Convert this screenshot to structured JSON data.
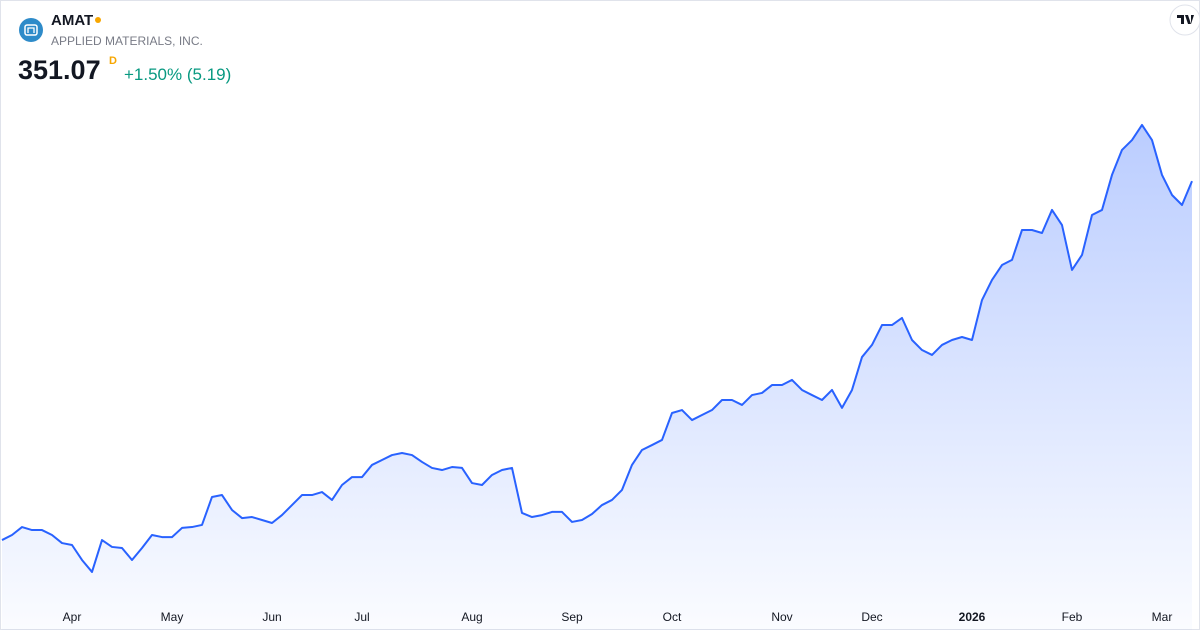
{
  "header": {
    "symbol": "AMAT",
    "company": "APPLIED MATERIALS, INC.",
    "price": "351.07",
    "interval": "D",
    "change": "+1.50% (5.19)"
  },
  "chart_data": {
    "type": "line",
    "color": "#2962ff",
    "ylim": [
      96,
      454
    ],
    "categories": [
      null,
      null,
      null,
      null,
      null,
      null,
      null,
      "Apr",
      null,
      null,
      null,
      null,
      null,
      null,
      null,
      null,
      null,
      "May",
      null,
      null,
      null,
      null,
      null,
      null,
      null,
      null,
      null,
      "Jun",
      null,
      null,
      null,
      null,
      null,
      null,
      null,
      null,
      "Jul",
      null,
      null,
      null,
      null,
      null,
      null,
      null,
      null,
      null,
      null,
      "Aug",
      null,
      null,
      null,
      null,
      null,
      null,
      null,
      null,
      null,
      "Sep",
      null,
      null,
      null,
      null,
      null,
      null,
      null,
      null,
      null,
      "Oct",
      null,
      null,
      null,
      null,
      null,
      null,
      null,
      null,
      null,
      null,
      "Nov",
      null,
      null,
      null,
      null,
      null,
      null,
      null,
      null,
      "Dec",
      null,
      null,
      null,
      null,
      null,
      null,
      null,
      null,
      null,
      "2026",
      null,
      null,
      null,
      null,
      null,
      null,
      null,
      null,
      null,
      "Feb",
      null,
      null,
      null,
      null,
      null,
      null,
      null,
      null,
      "Mar",
      null,
      null,
      null
    ],
    "values": [
      147.1,
      150.0,
      154.5,
      152.8,
      152.8,
      150.0,
      145.4,
      144.3,
      135.8,
      129.0,
      147.1,
      143.2,
      142.6,
      135.8,
      142.6,
      150.0,
      148.8,
      148.8,
      154.0,
      154.5,
      155.7,
      171.6,
      172.7,
      164.2,
      159.6,
      160.2,
      158.5,
      156.8,
      161.3,
      167.0,
      172.7,
      172.7,
      174.4,
      169.9,
      178.4,
      182.9,
      182.9,
      189.8,
      192.6,
      195.4,
      196.6,
      195.4,
      191.5,
      188.1,
      186.9,
      188.6,
      188.1,
      179.5,
      178.4,
      184.1,
      186.9,
      188.1,
      162.5,
      160.2,
      161.3,
      163.1,
      163.1,
      157.4,
      158.5,
      161.9,
      167.0,
      169.9,
      175.6,
      189.8,
      198.3,
      201.1,
      204.0,
      219.3,
      221.0,
      215.3,
      218.2,
      221.0,
      226.7,
      226.7,
      223.9,
      229.5,
      230.7,
      235.2,
      235.2,
      238.1,
      232.4,
      229.5,
      226.7,
      232.4,
      222.2,
      232.4,
      251.1,
      258.0,
      269.3,
      269.3,
      273.3,
      260.8,
      255.1,
      252.3,
      258.0,
      260.8,
      262.5,
      260.8,
      283.5,
      294.9,
      303.4,
      306.3,
      323.3,
      323.3,
      321.6,
      334.7,
      326.1,
      300.6,
      309.1,
      331.8,
      334.7,
      354.6,
      368.8,
      374.4,
      383.0,
      374.4,
      354.6,
      343.2,
      337.5,
      351.07
    ]
  }
}
